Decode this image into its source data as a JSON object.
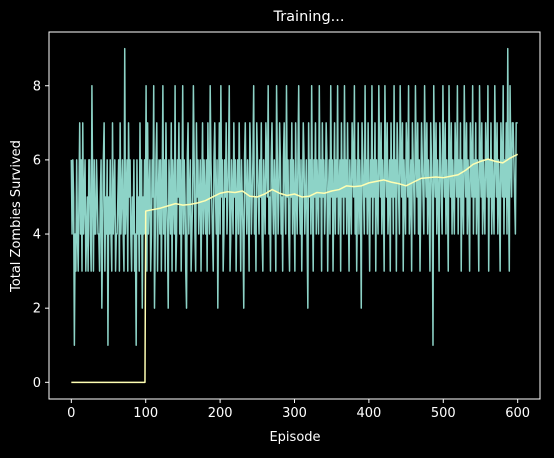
{
  "chart_data": {
    "type": "line",
    "title": "Training...",
    "xlabel": "Episode",
    "ylabel": "Total Zombies Survived",
    "xlim": [
      -30,
      630
    ],
    "ylim": [
      -0.45,
      9.45
    ],
    "xticks": [
      0,
      100,
      200,
      300,
      400,
      500,
      600
    ],
    "yticks": [
      0,
      2,
      4,
      6,
      8
    ],
    "grid": false,
    "legend": "none",
    "background": "#000000",
    "foreground": "#ffffff",
    "series": [
      {
        "color": "#8dd3c7",
        "style": "per-episode score (noisy, integers 1-9)",
        "x_start": 0,
        "x_end": 600,
        "values": [
          6,
          4,
          6,
          5,
          1,
          4,
          3,
          6,
          4,
          3,
          5,
          7,
          4,
          6,
          3,
          7,
          4,
          5,
          6,
          3,
          4,
          5,
          3,
          6,
          6,
          4,
          3,
          8,
          5,
          3,
          6,
          4,
          4,
          6,
          5,
          4,
          4,
          3,
          5,
          6,
          2,
          4,
          6,
          7,
          3,
          5,
          4,
          6,
          1,
          5,
          4,
          6,
          4,
          3,
          7,
          4,
          5,
          6,
          3,
          4,
          4,
          5,
          6,
          3,
          7,
          4,
          5,
          6,
          4,
          3,
          9,
          4,
          5,
          6,
          3,
          7,
          5,
          6,
          4,
          3,
          5,
          4,
          6,
          3,
          4,
          1,
          6,
          4,
          5,
          3,
          7,
          4,
          6,
          2,
          5,
          4,
          6,
          4,
          8,
          3,
          7,
          4,
          5,
          6,
          3,
          4,
          6,
          5,
          8,
          2,
          4,
          6,
          7,
          3,
          5,
          6,
          4,
          6,
          3,
          5,
          8,
          4,
          6,
          3,
          7,
          5,
          4,
          2,
          6,
          5,
          4,
          7,
          3,
          6,
          5,
          4,
          8,
          3,
          4,
          6,
          5,
          7,
          4,
          6,
          3,
          5,
          8,
          4,
          6,
          5,
          3,
          2,
          6,
          7,
          4,
          5,
          6,
          3,
          4,
          5,
          8,
          6,
          4,
          3,
          7,
          5,
          6,
          4,
          5,
          6,
          3,
          5,
          7,
          4,
          6,
          5,
          4,
          6,
          3,
          7,
          5,
          4,
          8,
          6,
          5,
          4,
          3,
          6,
          7,
          5,
          4,
          6,
          2,
          5,
          7,
          4,
          8,
          5,
          6,
          3,
          4,
          6,
          5,
          7,
          4,
          5,
          6,
          8,
          3,
          4,
          6,
          5,
          4,
          7,
          5,
          6,
          3,
          5,
          6,
          4,
          7,
          5,
          3,
          6,
          5,
          4,
          2,
          6,
          7,
          5,
          4,
          6,
          5,
          3,
          7,
          6,
          4,
          5,
          6,
          8,
          4,
          5,
          3,
          7,
          6,
          5,
          4,
          6,
          5,
          7,
          4,
          3,
          6,
          5,
          4,
          7,
          6,
          5,
          8,
          4,
          5,
          3,
          6,
          7,
          5,
          4,
          6,
          5,
          3,
          8,
          6,
          4,
          5,
          7,
          6,
          4,
          5,
          3,
          6,
          7,
          5,
          4,
          8,
          5,
          6,
          4,
          3,
          6,
          5,
          7,
          4,
          6,
          5,
          3,
          7,
          5,
          4,
          6,
          8,
          5,
          4,
          6,
          3,
          5,
          7,
          6,
          4,
          5,
          6,
          4,
          2,
          7,
          5,
          6,
          4,
          8,
          5,
          3,
          6,
          5,
          7,
          4,
          6,
          5,
          4,
          8,
          5,
          6,
          3,
          7,
          5,
          6,
          4,
          5,
          7,
          6,
          3,
          5,
          6,
          4,
          8,
          5,
          6,
          3,
          5,
          7,
          4,
          6,
          5,
          8,
          4,
          5,
          6,
          3,
          7,
          5,
          6,
          4,
          8,
          5,
          6,
          4,
          7,
          5,
          3,
          6,
          5,
          4,
          7,
          6,
          5,
          8,
          4,
          6,
          3,
          5,
          7,
          4,
          6,
          5,
          2,
          7,
          6,
          5,
          4,
          8,
          5,
          6,
          4,
          7,
          5,
          3,
          6,
          5,
          8,
          4,
          6,
          5,
          7,
          3,
          6,
          5,
          4,
          8,
          6,
          5,
          7,
          4,
          6,
          5,
          3,
          8,
          6,
          5,
          7,
          4,
          5,
          6,
          3,
          7,
          5,
          6,
          4,
          8,
          5,
          6,
          3,
          7,
          6,
          5,
          4,
          8,
          6,
          5,
          7,
          3,
          6,
          5,
          4,
          7,
          6,
          5,
          8,
          4,
          5,
          6,
          3,
          7,
          6,
          5,
          4,
          8,
          6,
          5,
          7,
          4,
          6,
          3,
          5,
          7,
          6,
          5,
          4,
          8,
          6,
          5,
          7,
          4,
          6,
          5,
          3,
          7,
          6,
          5,
          1,
          8,
          6,
          5,
          7,
          4,
          6,
          5,
          3,
          7,
          6,
          5,
          4,
          8,
          6,
          5,
          7,
          4,
          6,
          5,
          3,
          8,
          6,
          5,
          7,
          4,
          6,
          5,
          4,
          7,
          6,
          5,
          8,
          4,
          6,
          5,
          7,
          3,
          6,
          5,
          4,
          8,
          6,
          5,
          7,
          4,
          6,
          5,
          3,
          7,
          6,
          5,
          8,
          4,
          6,
          5,
          7,
          4,
          6,
          5,
          3,
          8,
          6,
          5,
          7,
          4,
          6,
          5,
          4,
          7,
          6,
          5,
          8,
          3,
          6,
          5,
          7,
          4,
          6,
          5,
          4,
          8,
          6,
          5,
          7,
          4,
          6,
          5,
          3,
          7,
          6,
          5,
          8,
          4,
          6,
          5,
          7,
          4,
          9,
          5,
          3,
          8,
          6,
          5,
          7,
          7,
          6,
          5,
          4,
          7,
          7,
          7
        ]
      },
      {
        "color": "#ffffb3",
        "style": "100-episode moving average",
        "points": [
          [
            0,
            0
          ],
          [
            99,
            0
          ],
          [
            100,
            4.62
          ],
          [
            110,
            4.66
          ],
          [
            120,
            4.7
          ],
          [
            130,
            4.76
          ],
          [
            140,
            4.82
          ],
          [
            150,
            4.78
          ],
          [
            160,
            4.8
          ],
          [
            170,
            4.84
          ],
          [
            180,
            4.9
          ],
          [
            190,
            5.0
          ],
          [
            200,
            5.1
          ],
          [
            210,
            5.14
          ],
          [
            220,
            5.12
          ],
          [
            230,
            5.16
          ],
          [
            240,
            5.02
          ],
          [
            250,
            5.0
          ],
          [
            260,
            5.08
          ],
          [
            270,
            5.2
          ],
          [
            280,
            5.1
          ],
          [
            290,
            5.04
          ],
          [
            300,
            5.08
          ],
          [
            310,
            5.0
          ],
          [
            320,
            5.02
          ],
          [
            330,
            5.12
          ],
          [
            340,
            5.1
          ],
          [
            350,
            5.16
          ],
          [
            360,
            5.2
          ],
          [
            370,
            5.3
          ],
          [
            380,
            5.28
          ],
          [
            390,
            5.3
          ],
          [
            400,
            5.38
          ],
          [
            410,
            5.42
          ],
          [
            420,
            5.46
          ],
          [
            430,
            5.4
          ],
          [
            440,
            5.36
          ],
          [
            450,
            5.3
          ],
          [
            460,
            5.4
          ],
          [
            470,
            5.5
          ],
          [
            480,
            5.52
          ],
          [
            490,
            5.54
          ],
          [
            500,
            5.52
          ],
          [
            510,
            5.56
          ],
          [
            520,
            5.6
          ],
          [
            530,
            5.72
          ],
          [
            540,
            5.88
          ],
          [
            550,
            5.96
          ],
          [
            560,
            6.02
          ],
          [
            570,
            5.96
          ],
          [
            580,
            5.92
          ],
          [
            590,
            6.05
          ],
          [
            600,
            6.15
          ]
        ]
      }
    ]
  }
}
